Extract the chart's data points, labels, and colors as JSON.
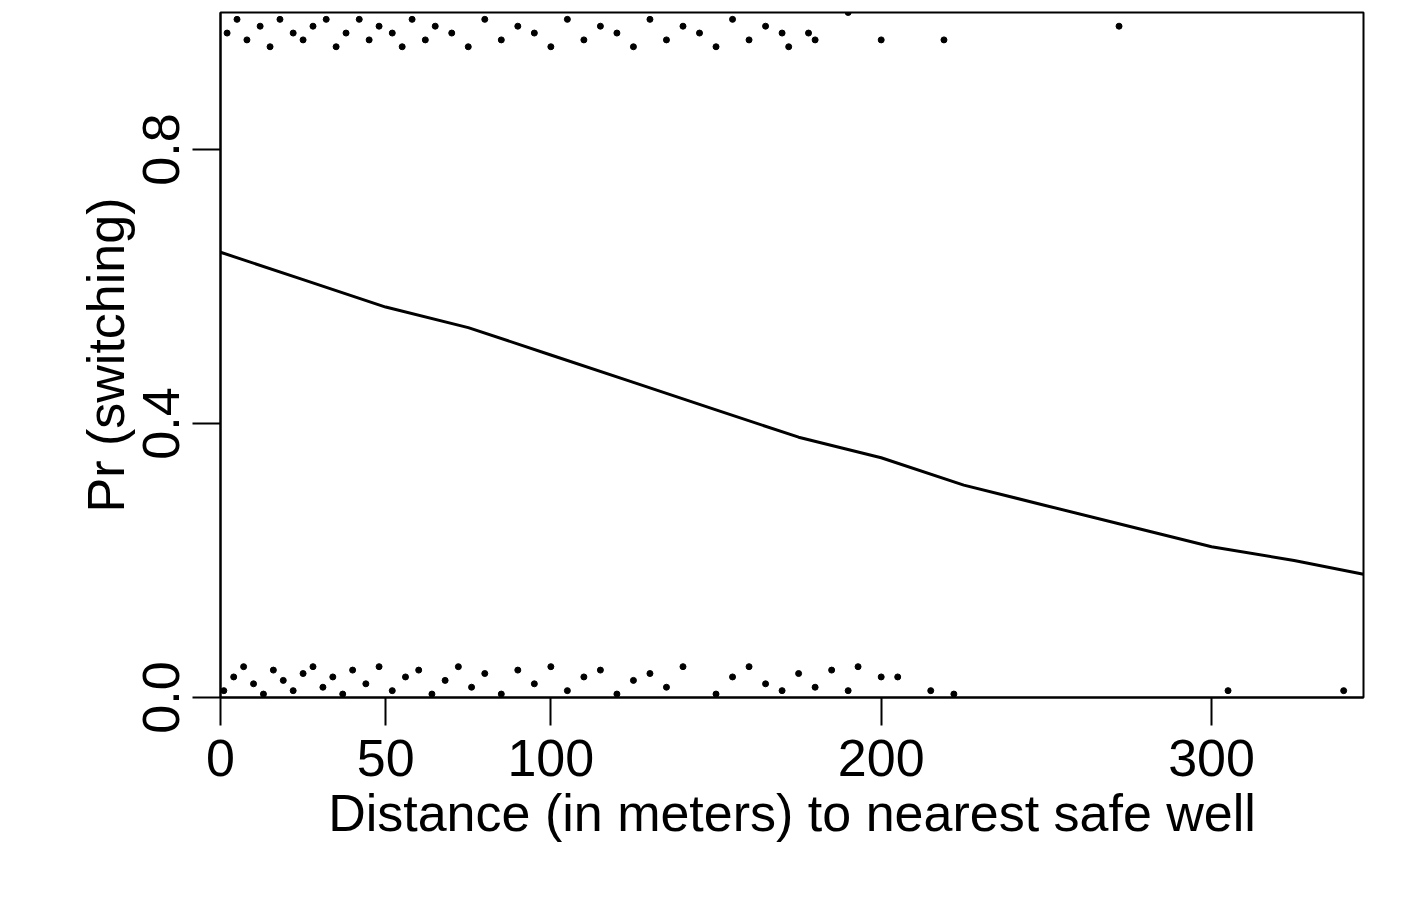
{
  "chart_data": {
    "type": "scatter",
    "xlabel": "Distance (in meters) to nearest safe well",
    "ylabel": "Pr (switching)",
    "xlim": [
      0,
      346
    ],
    "ylim": [
      0,
      1
    ],
    "xticks": [
      0,
      50,
      100,
      200,
      300
    ],
    "yticks": [
      {
        "value": 0,
        "label": "0.0"
      },
      {
        "value": 0.4,
        "label": "0.4"
      },
      {
        "value": 0.8,
        "label": "0.8"
      }
    ],
    "grid": false,
    "marker": "circle",
    "series": [
      {
        "type": "scatter",
        "color": "#000000",
        "x": [
          2,
          5,
          8,
          12,
          15,
          18,
          22,
          25,
          28,
          32,
          35,
          38,
          42,
          45,
          48,
          52,
          55,
          58,
          62,
          65,
          70,
          75,
          80,
          85,
          90,
          95,
          100,
          105,
          110,
          115,
          120,
          125,
          130,
          135,
          140,
          145,
          150,
          155,
          160,
          165,
          170,
          172,
          178,
          180,
          190,
          200,
          219,
          272
        ],
        "values": [
          0.97,
          0.99,
          0.96,
          0.98,
          0.95,
          0.99,
          0.97,
          0.96,
          0.98,
          0.99,
          0.95,
          0.97,
          0.99,
          0.96,
          0.98,
          0.97,
          0.95,
          0.99,
          0.96,
          0.98,
          0.97,
          0.95,
          0.99,
          0.96,
          0.98,
          0.97,
          0.95,
          0.99,
          0.96,
          0.98,
          0.97,
          0.95,
          0.99,
          0.96,
          0.98,
          0.97,
          0.95,
          0.99,
          0.96,
          0.98,
          0.97,
          0.95,
          0.97,
          0.96,
          1.0,
          0.96,
          0.96,
          0.98
        ]
      },
      {
        "type": "scatter",
        "color": "#000000",
        "x": [
          1,
          4,
          7,
          10,
          13,
          16,
          19,
          22,
          25,
          28,
          31,
          34,
          37,
          40,
          44,
          48,
          52,
          56,
          60,
          64,
          68,
          72,
          76,
          80,
          85,
          90,
          95,
          100,
          105,
          110,
          115,
          120,
          125,
          130,
          135,
          140,
          150,
          155,
          160,
          165,
          170,
          175,
          180,
          185,
          190,
          193,
          200,
          205,
          215,
          222,
          305,
          340
        ],
        "values": [
          0.01,
          0.03,
          0.045,
          0.02,
          0.005,
          0.04,
          0.025,
          0.01,
          0.035,
          0.045,
          0.015,
          0.03,
          0.005,
          0.04,
          0.02,
          0.045,
          0.01,
          0.03,
          0.04,
          0.005,
          0.025,
          0.045,
          0.015,
          0.035,
          0.005,
          0.04,
          0.02,
          0.045,
          0.01,
          0.03,
          0.04,
          0.005,
          0.025,
          0.035,
          0.015,
          0.045,
          0.005,
          0.03,
          0.045,
          0.02,
          0.01,
          0.035,
          0.015,
          0.04,
          0.01,
          0.045,
          0.03,
          0.03,
          0.01,
          0.005,
          0.01,
          0.01
        ]
      },
      {
        "type": "line",
        "color": "#000000",
        "marker": "none",
        "line_style": "solid",
        "x": [
          0,
          25,
          50,
          75,
          100,
          125,
          150,
          175,
          200,
          225,
          250,
          275,
          300,
          325,
          346
        ],
        "values": [
          0.65,
          0.61,
          0.57,
          0.54,
          0.5,
          0.46,
          0.42,
          0.38,
          0.35,
          0.31,
          0.28,
          0.25,
          0.22,
          0.2,
          0.18
        ]
      }
    ]
  }
}
